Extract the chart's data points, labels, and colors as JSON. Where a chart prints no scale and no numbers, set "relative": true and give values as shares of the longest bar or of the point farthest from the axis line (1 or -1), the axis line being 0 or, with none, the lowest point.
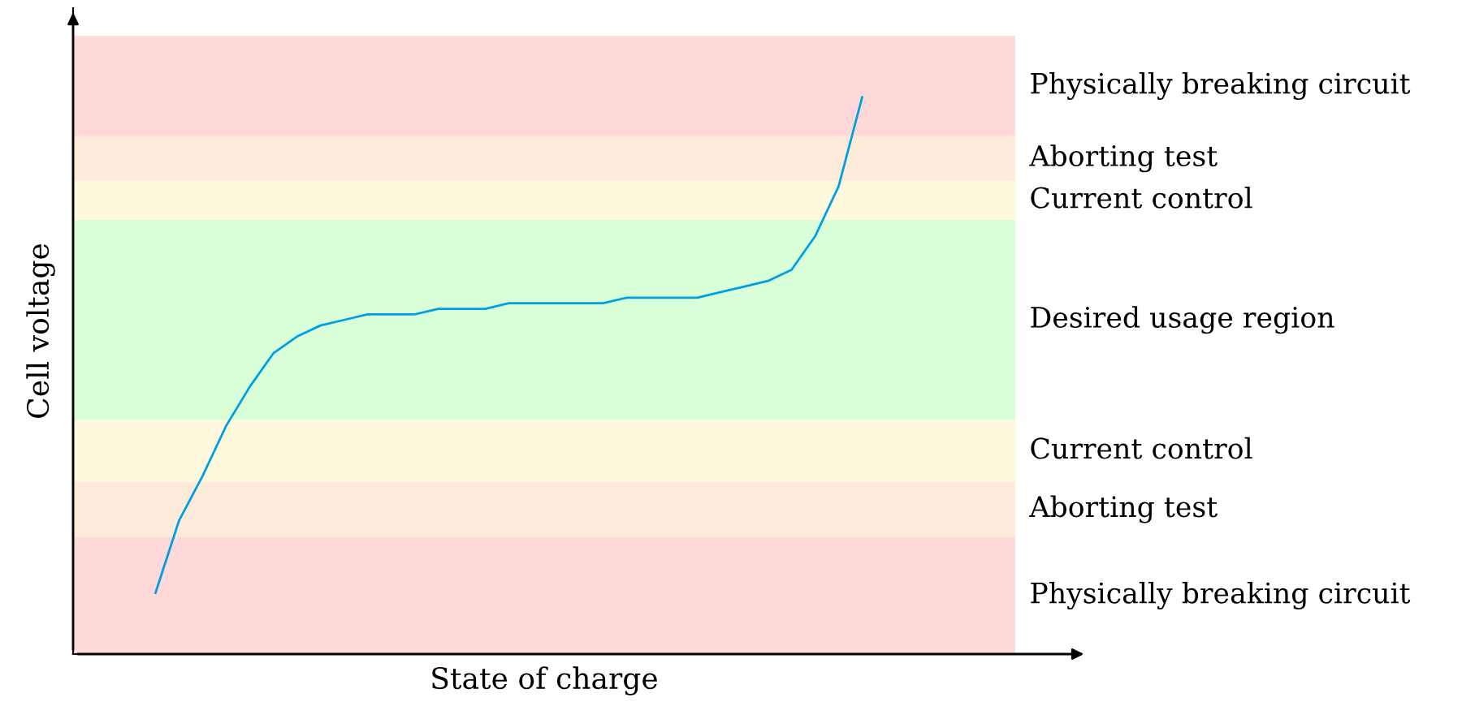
{
  "chart_data": {
    "type": "line",
    "relative": true,
    "xlabel": "State of charge",
    "ylabel": "Cell voltage",
    "categories": [
      null,
      null,
      null,
      null,
      null,
      null,
      null,
      null,
      null,
      null,
      null,
      null,
      null,
      null,
      null,
      null,
      null,
      null,
      null,
      null,
      null,
      null,
      null,
      null,
      null,
      null,
      null,
      null,
      null,
      null,
      null,
      null,
      null,
      null,
      null,
      null,
      null,
      null,
      null,
      null
    ],
    "series": [
      {
        "color": "#00a0e0",
        "values": [
          null,
          null,
          null,
          0.11,
          0.24,
          0.32,
          0.41,
          0.48,
          0.54,
          0.57,
          0.59,
          0.6,
          0.61,
          0.61,
          0.61,
          0.62,
          0.62,
          0.62,
          0.63,
          0.63,
          0.63,
          0.63,
          0.63,
          0.64,
          0.64,
          0.64,
          0.64,
          0.65,
          0.66,
          0.67,
          0.69,
          0.75,
          0.84,
          1.0,
          null,
          null,
          null,
          null,
          null,
          null
        ]
      }
    ],
    "bands": [
      {
        "axis": "y",
        "from": 0,
        "to": 0.21,
        "label": "Physically breaking circuit",
        "color": "#ffd9d9"
      },
      {
        "axis": "y",
        "from": 0.21,
        "to": 0.31,
        "label": "Aborting test",
        "color": "#ffebd9"
      },
      {
        "axis": "y",
        "from": 0.31,
        "to": 0.42,
        "label": "Current control",
        "color": "#fffade"
      },
      {
        "axis": "y",
        "from": 0.42,
        "to": 0.78,
        "label": "Desired usage region",
        "color": "#d9ffd9"
      },
      {
        "axis": "y",
        "from": 0.78,
        "to": 0.85,
        "label": "Current control",
        "color": "#fffade"
      },
      {
        "axis": "y",
        "from": 0.85,
        "to": 0.93,
        "label": "Aborting test",
        "color": "#ffebd9"
      },
      {
        "axis": "y",
        "from": 0.93,
        "to": 1.11,
        "label": "Physically breaking circuit",
        "color": "#ffd9d9"
      }
    ],
    "grid": false,
    "legend": false
  }
}
